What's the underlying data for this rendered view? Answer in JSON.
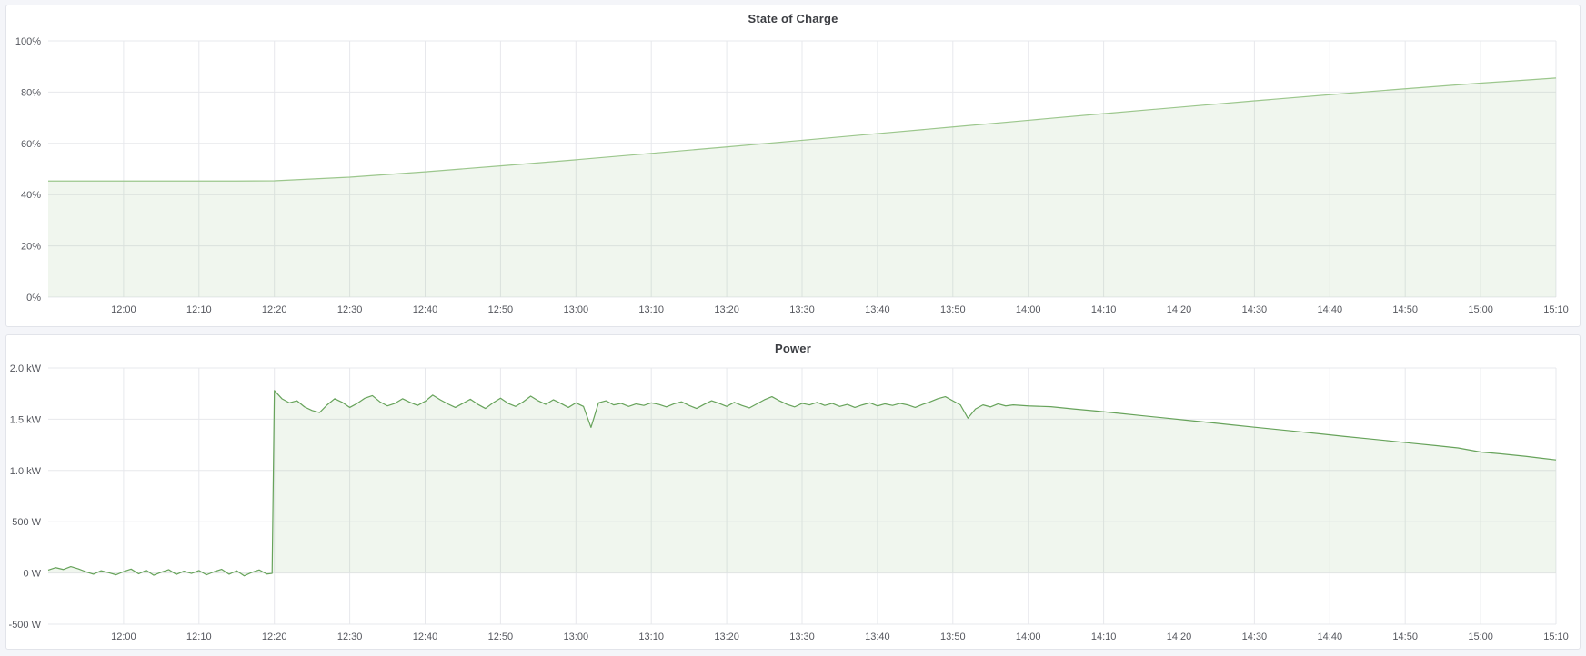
{
  "page": {
    "background": "#f4f5f9"
  },
  "panels": [
    {
      "title": "State of Charge"
    },
    {
      "title": "Power"
    }
  ],
  "chart_data": [
    {
      "type": "area",
      "title": "State of Charge",
      "xlabel": "",
      "ylabel": "",
      "legend": "none",
      "grid": true,
      "line_color": "#9cc78d",
      "fill_color": "rgba(118,172,100,0.11)",
      "x_domain_minutes": [
        710,
        910
      ],
      "x_tick_minutes": [
        720,
        730,
        740,
        750,
        760,
        770,
        780,
        790,
        800,
        810,
        820,
        830,
        840,
        850,
        860,
        870,
        880,
        890,
        900,
        910
      ],
      "x_tick_labels": [
        "12:00",
        "12:10",
        "12:20",
        "12:30",
        "12:40",
        "12:50",
        "13:00",
        "13:10",
        "13:20",
        "13:30",
        "13:40",
        "13:50",
        "14:00",
        "14:10",
        "14:20",
        "14:30",
        "14:40",
        "14:50",
        "15:00",
        "15:10"
      ],
      "y_domain": [
        0,
        100
      ],
      "y_ticks": [
        {
          "value": 0,
          "label": "0%"
        },
        {
          "value": 20,
          "label": "20%"
        },
        {
          "value": 40,
          "label": "40%"
        },
        {
          "value": 60,
          "label": "60%"
        },
        {
          "value": 80,
          "label": "80%"
        },
        {
          "value": 100,
          "label": "100%"
        }
      ],
      "fill_baseline": 0,
      "points": [
        [
          710,
          45.3
        ],
        [
          715,
          45.3
        ],
        [
          720,
          45.3
        ],
        [
          725,
          45.3
        ],
        [
          730,
          45.3
        ],
        [
          735,
          45.3
        ],
        [
          740,
          45.4
        ],
        [
          750,
          46.8
        ],
        [
          760,
          48.9
        ],
        [
          770,
          51.2
        ],
        [
          780,
          53.6
        ],
        [
          790,
          56.1
        ],
        [
          800,
          58.6
        ],
        [
          810,
          61.2
        ],
        [
          820,
          63.8
        ],
        [
          830,
          66.4
        ],
        [
          840,
          69.0
        ],
        [
          850,
          71.6
        ],
        [
          860,
          74.1
        ],
        [
          870,
          76.6
        ],
        [
          880,
          79.0
        ],
        [
          890,
          81.3
        ],
        [
          900,
          83.5
        ],
        [
          910,
          85.5
        ]
      ]
    },
    {
      "type": "area",
      "title": "Power",
      "xlabel": "",
      "ylabel": "",
      "legend": "none",
      "grid": true,
      "line_color": "#67a35b",
      "fill_color": "rgba(118,172,100,0.11)",
      "x_domain_minutes": [
        710,
        910
      ],
      "x_tick_minutes": [
        720,
        730,
        740,
        750,
        760,
        770,
        780,
        790,
        800,
        810,
        820,
        830,
        840,
        850,
        860,
        870,
        880,
        890,
        900,
        910
      ],
      "x_tick_labels": [
        "12:00",
        "12:10",
        "12:20",
        "12:30",
        "12:40",
        "12:50",
        "13:00",
        "13:10",
        "13:20",
        "13:30",
        "13:40",
        "13:50",
        "14:00",
        "14:10",
        "14:20",
        "14:30",
        "14:40",
        "14:50",
        "15:00",
        "15:10"
      ],
      "y_domain": [
        -500,
        2000
      ],
      "y_ticks": [
        {
          "value": -500,
          "label": "-500 W"
        },
        {
          "value": 0,
          "label": "0 W"
        },
        {
          "value": 500,
          "label": "500 W"
        },
        {
          "value": 1000,
          "label": "1.0 kW"
        },
        {
          "value": 1500,
          "label": "1.5 kW"
        },
        {
          "value": 2000,
          "label": "2.0 kW"
        }
      ],
      "fill_baseline": 0,
      "points": [
        [
          710,
          28
        ],
        [
          711,
          52
        ],
        [
          712,
          34
        ],
        [
          713,
          62
        ],
        [
          714,
          40
        ],
        [
          715,
          12
        ],
        [
          716,
          -12
        ],
        [
          717,
          22
        ],
        [
          718,
          4
        ],
        [
          719,
          -18
        ],
        [
          720,
          14
        ],
        [
          721,
          38
        ],
        [
          722,
          -8
        ],
        [
          723,
          26
        ],
        [
          724,
          -22
        ],
        [
          725,
          8
        ],
        [
          726,
          32
        ],
        [
          727,
          -14
        ],
        [
          728,
          18
        ],
        [
          729,
          -4
        ],
        [
          730,
          24
        ],
        [
          731,
          -18
        ],
        [
          732,
          12
        ],
        [
          733,
          36
        ],
        [
          734,
          -12
        ],
        [
          735,
          22
        ],
        [
          736,
          -28
        ],
        [
          737,
          6
        ],
        [
          738,
          30
        ],
        [
          739,
          -10
        ],
        [
          739.7,
          -4
        ],
        [
          740,
          1780
        ],
        [
          741,
          1700
        ],
        [
          742,
          1660
        ],
        [
          743,
          1680
        ],
        [
          744,
          1620
        ],
        [
          745,
          1585
        ],
        [
          746,
          1565
        ],
        [
          747,
          1640
        ],
        [
          748,
          1700
        ],
        [
          749,
          1665
        ],
        [
          750,
          1615
        ],
        [
          751,
          1655
        ],
        [
          752,
          1705
        ],
        [
          753,
          1730
        ],
        [
          754,
          1670
        ],
        [
          755,
          1630
        ],
        [
          756,
          1655
        ],
        [
          757,
          1700
        ],
        [
          758,
          1665
        ],
        [
          759,
          1635
        ],
        [
          760,
          1675
        ],
        [
          761,
          1735
        ],
        [
          762,
          1690
        ],
        [
          763,
          1650
        ],
        [
          764,
          1615
        ],
        [
          765,
          1655
        ],
        [
          766,
          1695
        ],
        [
          767,
          1645
        ],
        [
          768,
          1605
        ],
        [
          769,
          1660
        ],
        [
          770,
          1705
        ],
        [
          771,
          1655
        ],
        [
          772,
          1625
        ],
        [
          773,
          1670
        ],
        [
          774,
          1725
        ],
        [
          775,
          1680
        ],
        [
          776,
          1645
        ],
        [
          777,
          1690
        ],
        [
          778,
          1655
        ],
        [
          779,
          1615
        ],
        [
          780,
          1660
        ],
        [
          781,
          1625
        ],
        [
          782,
          1420
        ],
        [
          783,
          1660
        ],
        [
          784,
          1680
        ],
        [
          785,
          1640
        ],
        [
          786,
          1655
        ],
        [
          787,
          1625
        ],
        [
          788,
          1650
        ],
        [
          789,
          1635
        ],
        [
          790,
          1660
        ],
        [
          791,
          1645
        ],
        [
          792,
          1620
        ],
        [
          793,
          1650
        ],
        [
          794,
          1670
        ],
        [
          795,
          1635
        ],
        [
          796,
          1605
        ],
        [
          797,
          1645
        ],
        [
          798,
          1680
        ],
        [
          799,
          1655
        ],
        [
          800,
          1625
        ],
        [
          801,
          1665
        ],
        [
          802,
          1635
        ],
        [
          803,
          1610
        ],
        [
          804,
          1650
        ],
        [
          805,
          1690
        ],
        [
          806,
          1720
        ],
        [
          807,
          1680
        ],
        [
          808,
          1645
        ],
        [
          809,
          1620
        ],
        [
          810,
          1655
        ],
        [
          811,
          1640
        ],
        [
          812,
          1665
        ],
        [
          813,
          1635
        ],
        [
          814,
          1655
        ],
        [
          815,
          1625
        ],
        [
          816,
          1645
        ],
        [
          817,
          1615
        ],
        [
          818,
          1640
        ],
        [
          819,
          1660
        ],
        [
          820,
          1630
        ],
        [
          821,
          1650
        ],
        [
          822,
          1635
        ],
        [
          823,
          1655
        ],
        [
          824,
          1640
        ],
        [
          825,
          1615
        ],
        [
          826,
          1645
        ],
        [
          827,
          1670
        ],
        [
          828,
          1700
        ],
        [
          829,
          1720
        ],
        [
          830,
          1680
        ],
        [
          831,
          1640
        ],
        [
          832,
          1510
        ],
        [
          833,
          1600
        ],
        [
          834,
          1640
        ],
        [
          835,
          1620
        ],
        [
          836,
          1650
        ],
        [
          837,
          1630
        ],
        [
          838,
          1640
        ],
        [
          840,
          1630
        ],
        [
          843,
          1622
        ],
        [
          846,
          1600
        ],
        [
          849,
          1580
        ],
        [
          852,
          1558
        ],
        [
          855,
          1535
        ],
        [
          858,
          1513
        ],
        [
          861,
          1490
        ],
        [
          864,
          1468
        ],
        [
          867,
          1445
        ],
        [
          870,
          1422
        ],
        [
          873,
          1400
        ],
        [
          876,
          1378
        ],
        [
          879,
          1355
        ],
        [
          882,
          1332
        ],
        [
          885,
          1310
        ],
        [
          888,
          1288
        ],
        [
          891,
          1265
        ],
        [
          894,
          1243
        ],
        [
          897,
          1220
        ],
        [
          900,
          1180
        ],
        [
          903,
          1160
        ],
        [
          906,
          1138
        ],
        [
          908,
          1120
        ],
        [
          910,
          1103
        ]
      ]
    }
  ]
}
